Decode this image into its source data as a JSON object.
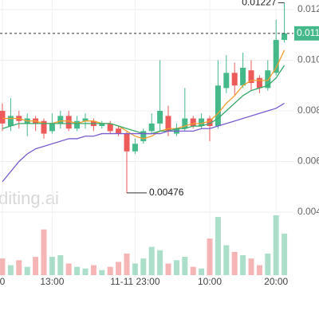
{
  "chart_data": {
    "type": "candlestick",
    "categories": [
      "0",
      null,
      null,
      null,
      null,
      null,
      "13:00",
      null,
      null,
      null,
      null,
      null,
      null,
      null,
      null,
      null,
      "11-11 23:00",
      null,
      null,
      null,
      null,
      null,
      null,
      null,
      null,
      "10:00",
      null,
      null,
      null,
      null,
      null,
      null,
      null,
      "20:00",
      null
    ],
    "candles": [
      {
        "open": 0.008,
        "close": 0.0075,
        "high": 0.0083,
        "low": 0.0072,
        "volume": 20
      },
      {
        "open": 0.0074,
        "close": 0.0078,
        "high": 0.0085,
        "low": 0.0072,
        "volume": 12
      },
      {
        "open": 0.0078,
        "close": 0.0076,
        "high": 0.008,
        "low": 0.0073,
        "volume": 18
      },
      {
        "open": 0.0075,
        "close": 0.0077,
        "high": 0.0079,
        "low": 0.007,
        "volume": 10
      },
      {
        "open": 0.0077,
        "close": 0.0075,
        "high": 0.0078,
        "low": 0.0072,
        "volume": 22
      },
      {
        "open": 0.0076,
        "close": 0.0071,
        "high": 0.0077,
        "low": 0.0069,
        "volume": 55
      },
      {
        "open": 0.0072,
        "close": 0.0075,
        "high": 0.0079,
        "low": 0.0071,
        "volume": 22
      },
      {
        "open": 0.0075,
        "close": 0.0078,
        "high": 0.008,
        "low": 0.0073,
        "volume": 24
      },
      {
        "open": 0.0078,
        "close": 0.0073,
        "high": 0.008,
        "low": 0.0072,
        "volume": 14
      },
      {
        "open": 0.0073,
        "close": 0.0076,
        "high": 0.0078,
        "low": 0.0072,
        "volume": 10
      },
      {
        "open": 0.0076,
        "close": 0.0077,
        "high": 0.0079,
        "low": 0.0073,
        "volume": 8
      },
      {
        "open": 0.0076,
        "close": 0.0074,
        "high": 0.0077,
        "low": 0.0072,
        "volume": 12
      },
      {
        "open": 0.0074,
        "close": 0.0075,
        "high": 0.0076,
        "low": 0.0073,
        "volume": 6
      },
      {
        "open": 0.0075,
        "close": 0.0072,
        "high": 0.0076,
        "low": 0.0071,
        "volume": 10
      },
      {
        "open": 0.0073,
        "close": 0.0071,
        "high": 0.0074,
        "low": 0.007,
        "volume": 16
      },
      {
        "open": 0.0071,
        "close": 0.0064,
        "high": 0.0072,
        "low": 0.00476,
        "volume": 26
      },
      {
        "open": 0.0064,
        "close": 0.0067,
        "high": 0.0069,
        "low": 0.0063,
        "volume": 14
      },
      {
        "open": 0.0068,
        "close": 0.0072,
        "high": 0.0073,
        "low": 0.0067,
        "volume": 20
      },
      {
        "open": 0.0072,
        "close": 0.0075,
        "high": 0.0079,
        "low": 0.0071,
        "volume": 34
      },
      {
        "open": 0.0075,
        "close": 0.008,
        "high": 0.01,
        "low": 0.0072,
        "volume": 30
      },
      {
        "open": 0.0078,
        "close": 0.0072,
        "high": 0.0082,
        "low": 0.007,
        "volume": 14
      },
      {
        "open": 0.0071,
        "close": 0.0073,
        "high": 0.0075,
        "low": 0.007,
        "volume": 18
      },
      {
        "open": 0.0073,
        "close": 0.0077,
        "high": 0.0089,
        "low": 0.0072,
        "volume": 22
      },
      {
        "open": 0.0077,
        "close": 0.0074,
        "high": 0.0078,
        "low": 0.0073,
        "volume": 10
      },
      {
        "open": 0.0074,
        "close": 0.0077,
        "high": 0.0079,
        "low": 0.0073,
        "volume": 8
      },
      {
        "open": 0.0077,
        "close": 0.0074,
        "high": 0.0078,
        "low": 0.0068,
        "volume": 44
      },
      {
        "open": 0.0074,
        "close": 0.009,
        "high": 0.01,
        "low": 0.0073,
        "volume": 70
      },
      {
        "open": 0.0089,
        "close": 0.0095,
        "high": 0.0102,
        "low": 0.0087,
        "volume": 36
      },
      {
        "open": 0.0095,
        "close": 0.009,
        "high": 0.0099,
        "low": 0.0086,
        "volume": 28
      },
      {
        "open": 0.009,
        "close": 0.0097,
        "high": 0.0103,
        "low": 0.0089,
        "volume": 24
      },
      {
        "open": 0.0096,
        "close": 0.0091,
        "high": 0.01,
        "low": 0.0088,
        "volume": 20
      },
      {
        "open": 0.0093,
        "close": 0.0089,
        "high": 0.0094,
        "low": 0.0087,
        "volume": 12
      },
      {
        "open": 0.0089,
        "close": 0.0096,
        "high": 0.01,
        "low": 0.0088,
        "volume": 26
      },
      {
        "open": 0.0095,
        "close": 0.0108,
        "high": 0.0116,
        "low": 0.0094,
        "volume": 72
      },
      {
        "open": 0.0108,
        "close": 0.01106,
        "high": 0.01227,
        "low": 0.0107,
        "volume": 50
      }
    ],
    "lines": [
      {
        "color": "#f0a030",
        "values": [
          0.0077,
          0.0077,
          0.0077,
          0.0076,
          0.0076,
          0.0075,
          0.0075,
          0.0076,
          0.0076,
          0.0075,
          0.0076,
          0.0076,
          0.0075,
          0.0075,
          0.0074,
          0.0072,
          0.007,
          0.0069,
          0.007,
          0.0072,
          0.0073,
          0.0073,
          0.0074,
          0.0075,
          0.0075,
          0.0076,
          0.0079,
          0.0083,
          0.0086,
          0.009,
          0.0092,
          0.0092,
          0.0092,
          0.0097,
          0.0104
        ]
      },
      {
        "color": "#3aa86a",
        "values": [
          0.0073,
          0.0074,
          0.0075,
          0.0075,
          0.0075,
          0.0075,
          0.0075,
          0.0075,
          0.0075,
          0.0075,
          0.0075,
          0.0075,
          0.0075,
          0.0075,
          0.0074,
          0.0073,
          0.0072,
          0.0071,
          0.0071,
          0.0072,
          0.0072,
          0.0073,
          0.0073,
          0.0074,
          0.0074,
          0.0075,
          0.0077,
          0.008,
          0.0083,
          0.0086,
          0.0088,
          0.0089,
          0.009,
          0.0093,
          0.0098
        ]
      },
      {
        "color": "#7a5cd0",
        "values": [
          0.0052,
          0.0056,
          0.006,
          0.0063,
          0.0065,
          0.0066,
          0.0067,
          0.0068,
          0.0069,
          0.0069,
          0.007,
          0.007,
          0.0071,
          0.0071,
          0.0071,
          0.0071,
          0.0071,
          0.0071,
          0.0071,
          0.0071,
          0.0072,
          0.0072,
          0.0072,
          0.0072,
          0.0073,
          0.0073,
          0.0074,
          0.0075,
          0.0076,
          0.0077,
          0.0078,
          0.0079,
          0.008,
          0.0081,
          0.0083
        ]
      }
    ],
    "up_color": "#45b98a",
    "down_color": "#ec5a5a",
    "ylim": [
      0.004,
      0.012
    ],
    "yticks": [
      0.012,
      {
        "value": 0.01,
        "label": "0.010"
      },
      0.008,
      0.006,
      0.004
    ],
    "last_price_label": "0.011",
    "watermark": "diting.ai",
    "grid": true
  }
}
